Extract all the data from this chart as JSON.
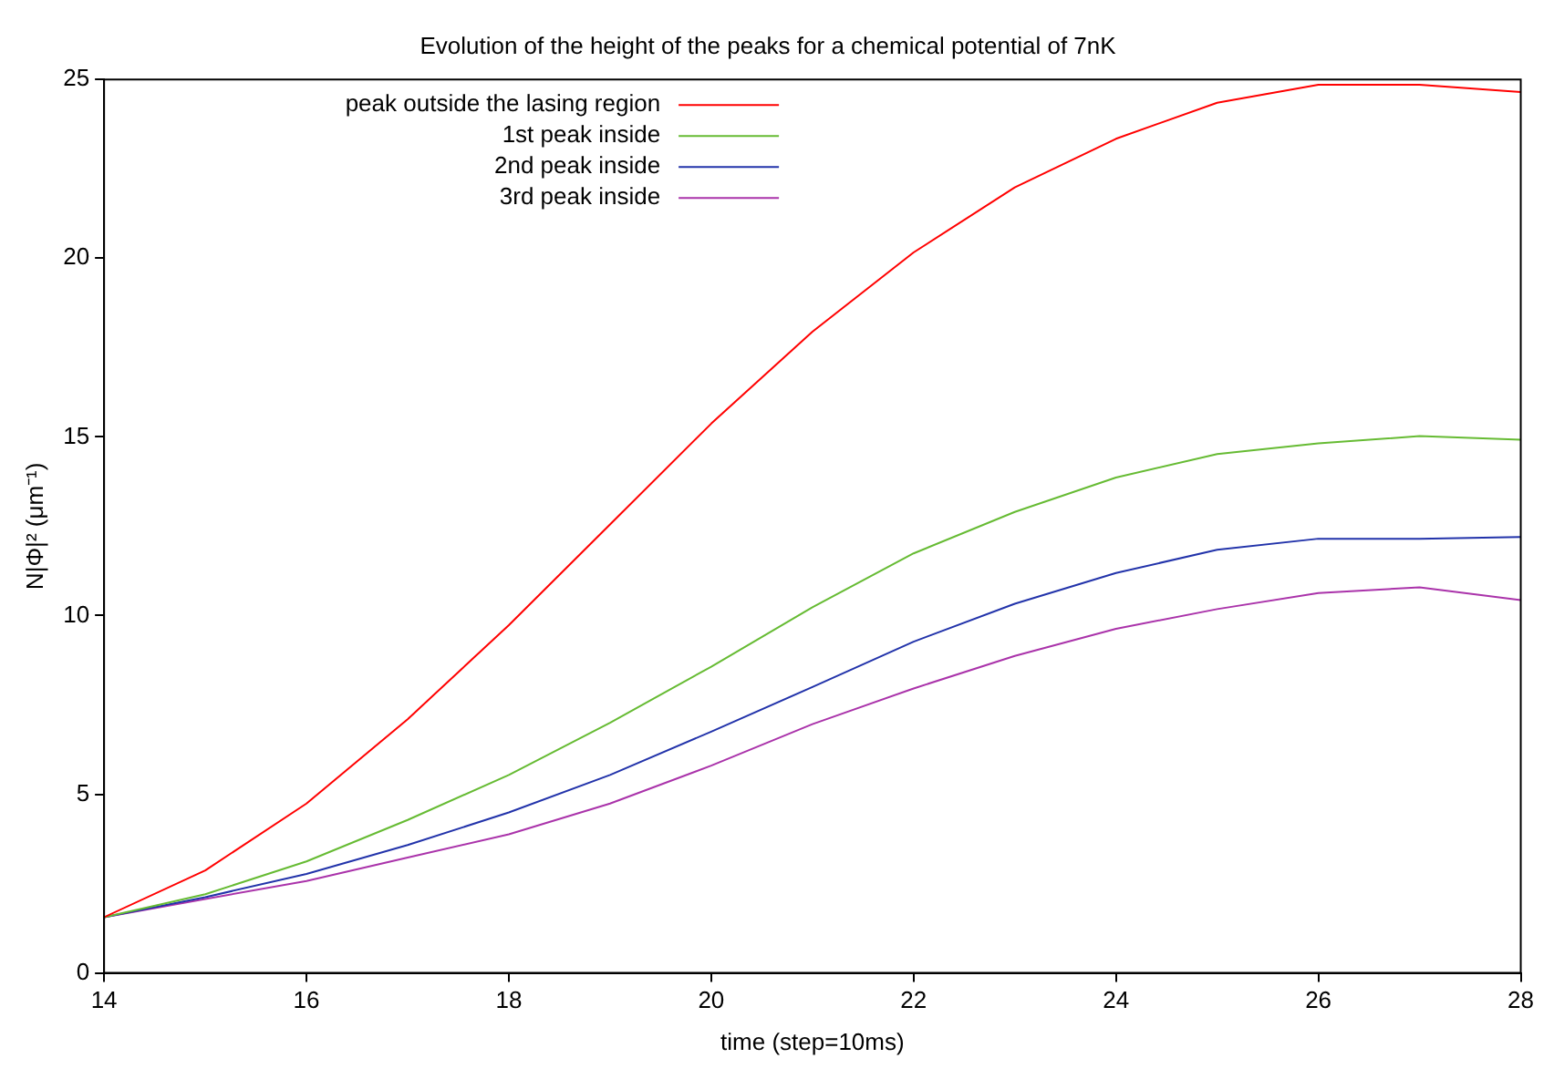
{
  "chart_data": {
    "type": "line",
    "title": "Evolution of the height of the peaks for a chemical potential of 7nK",
    "xlabel": "time (step=10ms)",
    "ylabel": "N|Φ|² (μm⁻¹)",
    "x": [
      14,
      15,
      16,
      17,
      18,
      19,
      20,
      21,
      22,
      23,
      24,
      25,
      26,
      27,
      28
    ],
    "series": [
      {
        "name": "peak outside the lasing region",
        "color": "#ff0000",
        "values": [
          1.56,
          2.87,
          4.74,
          7.1,
          9.73,
          12.55,
          15.37,
          17.94,
          20.16,
          21.98,
          23.34,
          24.35,
          24.85,
          24.85,
          24.65
        ]
      },
      {
        "name": "1st peak inside",
        "color": "#66bb33",
        "values": [
          1.56,
          2.2,
          3.12,
          4.28,
          5.54,
          7.0,
          8.57,
          10.23,
          11.74,
          12.9,
          13.86,
          14.52,
          14.82,
          15.02,
          14.92
        ]
      },
      {
        "name": "2nd peak inside",
        "color": "#2233aa",
        "values": [
          1.56,
          2.12,
          2.77,
          3.58,
          4.49,
          5.54,
          6.75,
          8.0,
          9.27,
          10.33,
          11.19,
          11.84,
          12.15,
          12.15,
          12.2
        ]
      },
      {
        "name": "3rd peak inside",
        "color": "#aa33aa",
        "values": [
          1.56,
          2.07,
          2.57,
          3.23,
          3.88,
          4.74,
          5.8,
          6.96,
          7.96,
          8.87,
          9.63,
          10.18,
          10.63,
          10.79,
          10.43
        ]
      }
    ],
    "xlim": [
      14,
      28
    ],
    "xticks": [
      14,
      16,
      18,
      20,
      22,
      24,
      26,
      28
    ],
    "ylim": [
      0,
      25
    ],
    "yticks": [
      0,
      5,
      10,
      15,
      20,
      25
    ],
    "legend": "top left",
    "marker": "none",
    "line_style": "solid"
  }
}
